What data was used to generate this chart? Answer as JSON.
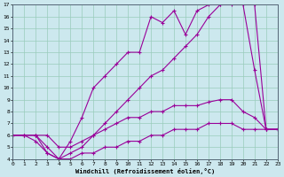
{
  "background_color": "#cce8ee",
  "line_color": "#990099",
  "grid_color": "#99ccbb",
  "xlabel": "Windchill (Refroidissement éolien,°C)",
  "ylim": [
    4,
    17
  ],
  "xlim": [
    0,
    23
  ],
  "yticks": [
    4,
    5,
    6,
    7,
    8,
    9,
    10,
    11,
    12,
    13,
    14,
    15,
    16,
    17
  ],
  "xticks": [
    0,
    1,
    2,
    3,
    4,
    5,
    6,
    7,
    8,
    9,
    10,
    11,
    12,
    13,
    14,
    15,
    16,
    17,
    18,
    19,
    20,
    21,
    22,
    23
  ],
  "series": [
    {
      "x": [
        2,
        3,
        4,
        5,
        6,
        7,
        8,
        9,
        10,
        11,
        12,
        13,
        14,
        15,
        16,
        17,
        18,
        21,
        22,
        23
      ],
      "y": [
        6,
        5,
        4,
        5.5,
        7.5,
        10,
        11,
        12,
        13,
        13,
        16,
        15.5,
        16.5,
        14.5,
        16.5,
        17,
        17,
        17,
        6.5,
        6.5
      ]
    },
    {
      "x": [
        0,
        1,
        2,
        3,
        4,
        5,
        6,
        7,
        8,
        9,
        10,
        11,
        12,
        13,
        14,
        15,
        16,
        17,
        18,
        19,
        20,
        21,
        22,
        23
      ],
      "y": [
        6,
        6,
        6,
        4.5,
        4,
        4.5,
        5,
        6,
        7,
        8,
        9,
        10,
        11,
        11.5,
        12.5,
        13.5,
        14.5,
        16,
        17,
        17,
        17,
        11.5,
        6.5,
        6.5
      ]
    },
    {
      "x": [
        0,
        1,
        2,
        3,
        4,
        5,
        6,
        7,
        8,
        9,
        10,
        11,
        12,
        13,
        14,
        15,
        16,
        17,
        18,
        19,
        20,
        21,
        22,
        23
      ],
      "y": [
        6,
        6,
        6,
        6,
        5,
        5,
        5.5,
        6,
        6.5,
        7,
        7.5,
        7.5,
        8,
        8,
        8.5,
        8.5,
        8.5,
        8.8,
        9,
        9,
        8,
        7.5,
        6.5,
        6.5
      ]
    },
    {
      "x": [
        0,
        1,
        2,
        3,
        4,
        5,
        6,
        7,
        8,
        9,
        10,
        11,
        12,
        13,
        14,
        15,
        16,
        17,
        18,
        19,
        20,
        21,
        22,
        23
      ],
      "y": [
        6,
        6,
        5.5,
        4.5,
        4,
        4,
        4.5,
        4.5,
        5,
        5,
        5.5,
        5.5,
        6,
        6,
        6.5,
        6.5,
        6.5,
        7,
        7,
        7,
        6.5,
        6.5,
        6.5,
        6.5
      ]
    }
  ]
}
